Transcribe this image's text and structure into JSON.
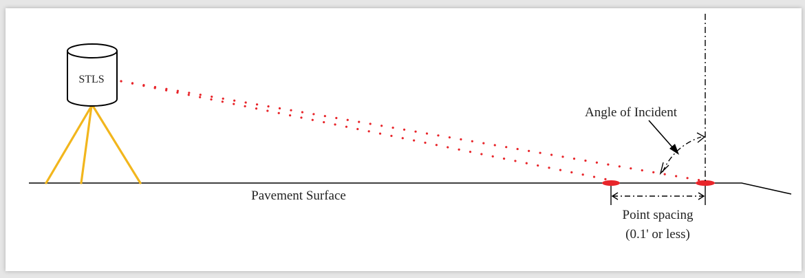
{
  "diagram": {
    "scanner_label": "STLS",
    "surface_label": "Pavement Surface",
    "angle_label": "Angle of Incident",
    "spacing_label_line1": "Point spacing",
    "spacing_label_line2": "(0.1' or less)"
  },
  "colors": {
    "laser": "#e8252a",
    "tripod": "#f2b61d",
    "line": "#000000"
  }
}
